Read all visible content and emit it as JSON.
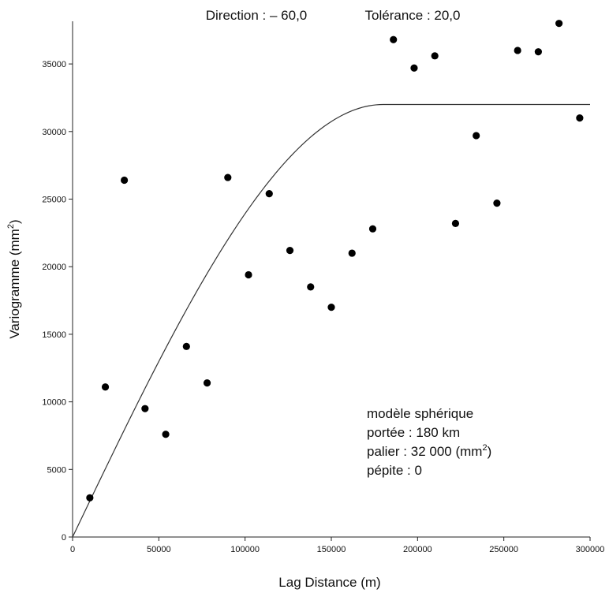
{
  "chart_data": {
    "type": "scatter",
    "title_direction": "Direction : – 60,0",
    "title_tolerance": "Tolérance : 20,0",
    "xlabel": "Lag Distance (m)",
    "ylabel": "Variogramme (mm",
    "ylabel_sup": "2",
    "ylabel_close": ")",
    "xlim": [
      0,
      300000
    ],
    "ylim": [
      0,
      37000
    ],
    "x_ticks": [
      0,
      50000,
      100000,
      150000,
      200000,
      250000,
      300000
    ],
    "x_tick_labels": [
      "0",
      "50000",
      "100000",
      "150000",
      "200000",
      "250000",
      "300000"
    ],
    "y_ticks": [
      0,
      5000,
      10000,
      15000,
      20000,
      25000,
      30000,
      35000
    ],
    "y_tick_labels": [
      "0",
      "5000",
      "10000",
      "15000",
      "20000",
      "25000",
      "30000",
      "35000"
    ],
    "points": [
      {
        "x": 10000,
        "y": 2900
      },
      {
        "x": 19000,
        "y": 11100
      },
      {
        "x": 30000,
        "y": 26400
      },
      {
        "x": 42000,
        "y": 9500
      },
      {
        "x": 54000,
        "y": 7600
      },
      {
        "x": 66000,
        "y": 14100
      },
      {
        "x": 78000,
        "y": 11400
      },
      {
        "x": 90000,
        "y": 26600
      },
      {
        "x": 102000,
        "y": 19400
      },
      {
        "x": 114000,
        "y": 25400
      },
      {
        "x": 126000,
        "y": 21200
      },
      {
        "x": 138000,
        "y": 18500
      },
      {
        "x": 150000,
        "y": 17000
      },
      {
        "x": 162000,
        "y": 21000
      },
      {
        "x": 174000,
        "y": 22800
      },
      {
        "x": 186000,
        "y": 36800
      },
      {
        "x": 198000,
        "y": 34700
      },
      {
        "x": 210000,
        "y": 35600
      },
      {
        "x": 222000,
        "y": 23200
      },
      {
        "x": 234000,
        "y": 29700
      },
      {
        "x": 246000,
        "y": 24700
      },
      {
        "x": 258000,
        "y": 36000
      },
      {
        "x": 270000,
        "y": 35900
      },
      {
        "x": 282000,
        "y": 38000
      },
      {
        "x": 294000,
        "y": 31000
      }
    ],
    "model": {
      "type": "spherical",
      "range": 180000,
      "sill": 32000,
      "nugget": 0
    },
    "annotation": {
      "line1": "modèle sphérique",
      "line2": "portée : 180 km",
      "line3_prefix": "palier : 32 000 (mm",
      "line3_sup": "2",
      "line3_suffix": ")",
      "line4": "pépite : 0"
    }
  }
}
